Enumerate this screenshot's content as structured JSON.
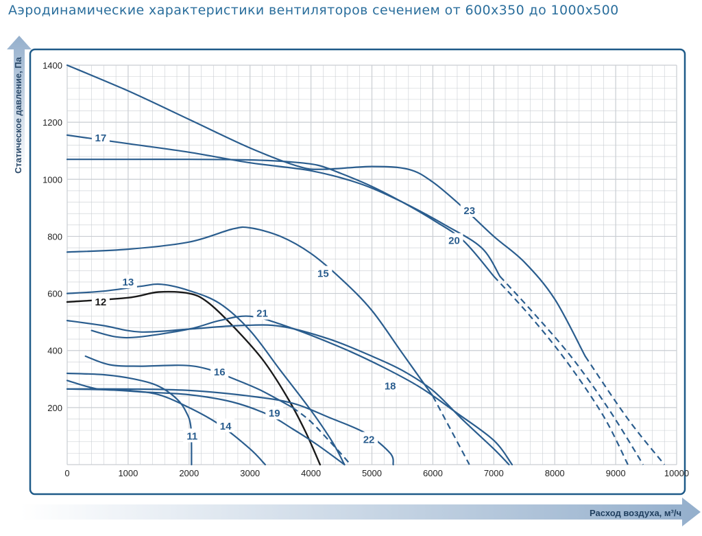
{
  "title": "Аэродинамические характеристики вентиляторов сечением от 600х350 до 1000х500",
  "colors": {
    "title": "#2a6e9c",
    "frame": "#1e5a88",
    "curve": "#2a5d8e",
    "curve_12": "#1a1a1a",
    "grid": "#c9cdd2",
    "arrow": "#9cb5cf"
  },
  "chart_data": {
    "type": "line",
    "title": "Аэродинамические характеристики вентиляторов сечением от 600х350 до 1000х500",
    "xlabel": "Расход воздуха, м³/ч",
    "ylabel": "Статическое давление, Па",
    "xlim": [
      0,
      10000
    ],
    "ylim": [
      0,
      1400
    ],
    "xticks": [
      0,
      1000,
      2000,
      3000,
      4000,
      5000,
      6000,
      7000,
      8000,
      9000,
      10000
    ],
    "xtick_labels": [
      "0",
      "1000",
      "2000",
      "3000",
      "4000",
      "5000",
      "6000",
      "7000",
      "8000",
      "9000",
      "10000"
    ],
    "yticks": [
      200,
      400,
      600,
      800,
      1000,
      1200,
      1400
    ],
    "ytick_labels": [
      "200",
      "400",
      "600",
      "800",
      "1000",
      "1200",
      "1400"
    ],
    "grid": true,
    "series": [
      {
        "name": "11",
        "label_at": [
          2050,
          100
        ],
        "points": [
          [
            0,
            320
          ],
          [
            600,
            315
          ],
          [
            1100,
            300
          ],
          [
            1500,
            275
          ],
          [
            1800,
            230
          ],
          [
            1950,
            185
          ],
          [
            2030,
            130
          ],
          [
            2040,
            0
          ]
        ]
      },
      {
        "name": "12",
        "label_at": [
          550,
          570
        ],
        "points": [
          [
            0,
            570
          ],
          [
            1000,
            585
          ],
          [
            1500,
            605
          ],
          [
            2000,
            600
          ],
          [
            2300,
            570
          ],
          [
            2700,
            490
          ],
          [
            3200,
            370
          ],
          [
            3600,
            240
          ],
          [
            3900,
            120
          ],
          [
            4150,
            0
          ]
        ]
      },
      {
        "name": "13",
        "label_at": [
          1000,
          640
        ],
        "points": [
          [
            0,
            600
          ],
          [
            600,
            608
          ],
          [
            1200,
            625
          ],
          [
            1550,
            632
          ],
          [
            2000,
            610
          ],
          [
            2500,
            565
          ],
          [
            3000,
            470
          ],
          [
            3500,
            330
          ],
          [
            4000,
            190
          ],
          [
            4350,
            80
          ],
          [
            4550,
            0
          ]
        ]
      },
      {
        "name": "14",
        "label_at": [
          2600,
          135
        ],
        "points": [
          [
            0,
            295
          ],
          [
            500,
            265
          ],
          [
            1000,
            260
          ],
          [
            1500,
            245
          ],
          [
            2000,
            200
          ],
          [
            2500,
            140
          ],
          [
            3000,
            55
          ],
          [
            3250,
            0
          ]
        ]
      },
      {
        "name": "15",
        "label_at": [
          4200,
          670
        ],
        "points": [
          [
            0,
            745
          ],
          [
            1000,
            755
          ],
          [
            2000,
            780
          ],
          [
            2700,
            825
          ],
          [
            3000,
            830
          ],
          [
            3500,
            800
          ],
          [
            4000,
            740
          ],
          [
            4500,
            650
          ],
          [
            5000,
            540
          ],
          [
            5500,
            390
          ],
          [
            6000,
            240
          ],
          [
            6600,
            0
          ]
        ],
        "dashed_from_index": 10
      },
      {
        "name": "16",
        "label_at": [
          2500,
          325
        ],
        "points": [
          [
            300,
            380
          ],
          [
            700,
            350
          ],
          [
            1200,
            345
          ],
          [
            1900,
            348
          ],
          [
            2300,
            335
          ],
          [
            2800,
            295
          ],
          [
            3200,
            258
          ],
          [
            3700,
            200
          ],
          [
            4000,
            150
          ],
          [
            4400,
            60
          ],
          [
            4650,
            0
          ]
        ],
        "dashed_from_index": 7
      },
      {
        "name": "17",
        "label_at": [
          550,
          1145
        ],
        "points": [
          [
            0,
            1155
          ],
          [
            1000,
            1125
          ],
          [
            2000,
            1095
          ],
          [
            3000,
            1058
          ],
          [
            4000,
            1030
          ],
          [
            4800,
            985
          ],
          [
            5500,
            920
          ],
          [
            6200,
            840
          ],
          [
            6800,
            760
          ],
          [
            7100,
            660
          ],
          [
            7700,
            520
          ],
          [
            8300,
            370
          ],
          [
            8900,
            190
          ],
          [
            9450,
            0
          ]
        ],
        "dashed_from_index": 9
      },
      {
        "name": "18",
        "label_at": [
          5300,
          275
        ],
        "points": [
          [
            400,
            470
          ],
          [
            800,
            448
          ],
          [
            1200,
            448
          ],
          [
            2000,
            475
          ],
          [
            2500,
            505
          ],
          [
            3000,
            520
          ],
          [
            3600,
            485
          ],
          [
            4500,
            410
          ],
          [
            5200,
            340
          ],
          [
            5800,
            270
          ],
          [
            6400,
            180
          ],
          [
            7000,
            85
          ],
          [
            7300,
            0
          ]
        ]
      },
      {
        "name": "19",
        "label_at": [
          3400,
          180
        ],
        "points": [
          [
            0,
            265
          ],
          [
            700,
            262
          ],
          [
            1200,
            255
          ],
          [
            2000,
            245
          ],
          [
            2700,
            220
          ],
          [
            3300,
            175
          ],
          [
            3700,
            125
          ],
          [
            4100,
            70
          ],
          [
            4550,
            0
          ]
        ]
      },
      {
        "name": "20",
        "label_at": [
          6350,
          785
        ],
        "points": [
          [
            0,
            1070
          ],
          [
            1000,
            1070
          ],
          [
            2000,
            1070
          ],
          [
            3000,
            1068
          ],
          [
            3600,
            1062
          ],
          [
            4100,
            1050
          ],
          [
            4500,
            1020
          ],
          [
            5000,
            975
          ],
          [
            5500,
            920
          ],
          [
            6000,
            858
          ],
          [
            6500,
            785
          ],
          [
            7000,
            660
          ],
          [
            7600,
            520
          ],
          [
            8200,
            360
          ],
          [
            8800,
            170
          ],
          [
            9200,
            0
          ]
        ],
        "dashed_from_index": 11
      },
      {
        "name": "21",
        "label_at": [
          3200,
          530
        ],
        "points": [
          [
            0,
            505
          ],
          [
            600,
            487
          ],
          [
            1200,
            465
          ],
          [
            2000,
            475
          ],
          [
            2800,
            487
          ],
          [
            3500,
            485
          ],
          [
            4300,
            440
          ],
          [
            5000,
            380
          ],
          [
            5500,
            330
          ],
          [
            6000,
            260
          ],
          [
            6500,
            155
          ],
          [
            7000,
            55
          ],
          [
            7250,
            0
          ]
        ]
      },
      {
        "name": "22",
        "label_at": [
          4950,
          88
        ],
        "points": [
          [
            0,
            265
          ],
          [
            1000,
            265
          ],
          [
            2000,
            260
          ],
          [
            3000,
            240
          ],
          [
            3700,
            215
          ],
          [
            4300,
            165
          ],
          [
            4900,
            110
          ],
          [
            5300,
            40
          ],
          [
            5350,
            0
          ]
        ]
      },
      {
        "name": "23",
        "label_at": [
          6600,
          890
        ],
        "points": [
          [
            0,
            1400
          ],
          [
            1000,
            1310
          ],
          [
            2000,
            1210
          ],
          [
            3000,
            1110
          ],
          [
            3800,
            1045
          ],
          [
            4200,
            1035
          ],
          [
            5000,
            1045
          ],
          [
            5600,
            1035
          ],
          [
            6000,
            990
          ],
          [
            6500,
            900
          ],
          [
            7000,
            800
          ],
          [
            7500,
            710
          ],
          [
            8000,
            580
          ],
          [
            8500,
            380
          ],
          [
            9200,
            160
          ],
          [
            9800,
            0
          ]
        ],
        "dashed_from_index": 13
      }
    ]
  }
}
